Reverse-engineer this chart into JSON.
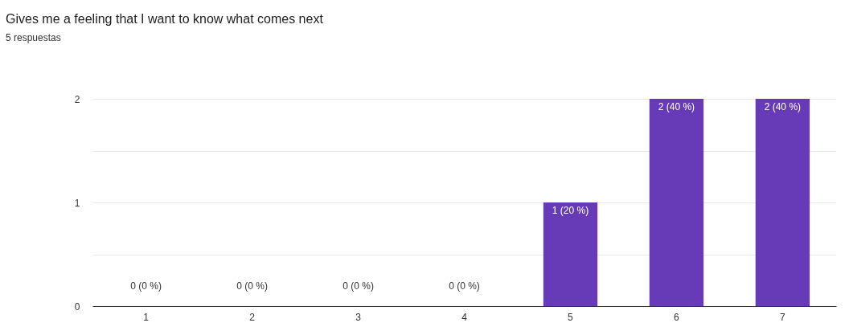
{
  "chart_data": {
    "type": "bar",
    "title": "Gives me a feeling that I want to know what comes next",
    "subtitle": "5 respuestas",
    "categories": [
      "1",
      "2",
      "3",
      "4",
      "5",
      "6",
      "7"
    ],
    "values": [
      0,
      0,
      0,
      0,
      1,
      2,
      2
    ],
    "value_labels": [
      "0 (0 %)",
      "0 (0 %)",
      "0 (0 %)",
      "0 (0 %)",
      "1 (20 %)",
      "2 (40 %)",
      "2 (40 %)"
    ],
    "color": "#673ab7",
    "ylim": [
      0,
      2
    ],
    "yticks": [
      0,
      {
        "value": 0.5,
        "label": null
      },
      1,
      {
        "value": 1.5,
        "label": null
      },
      2
    ],
    "grid": true
  }
}
